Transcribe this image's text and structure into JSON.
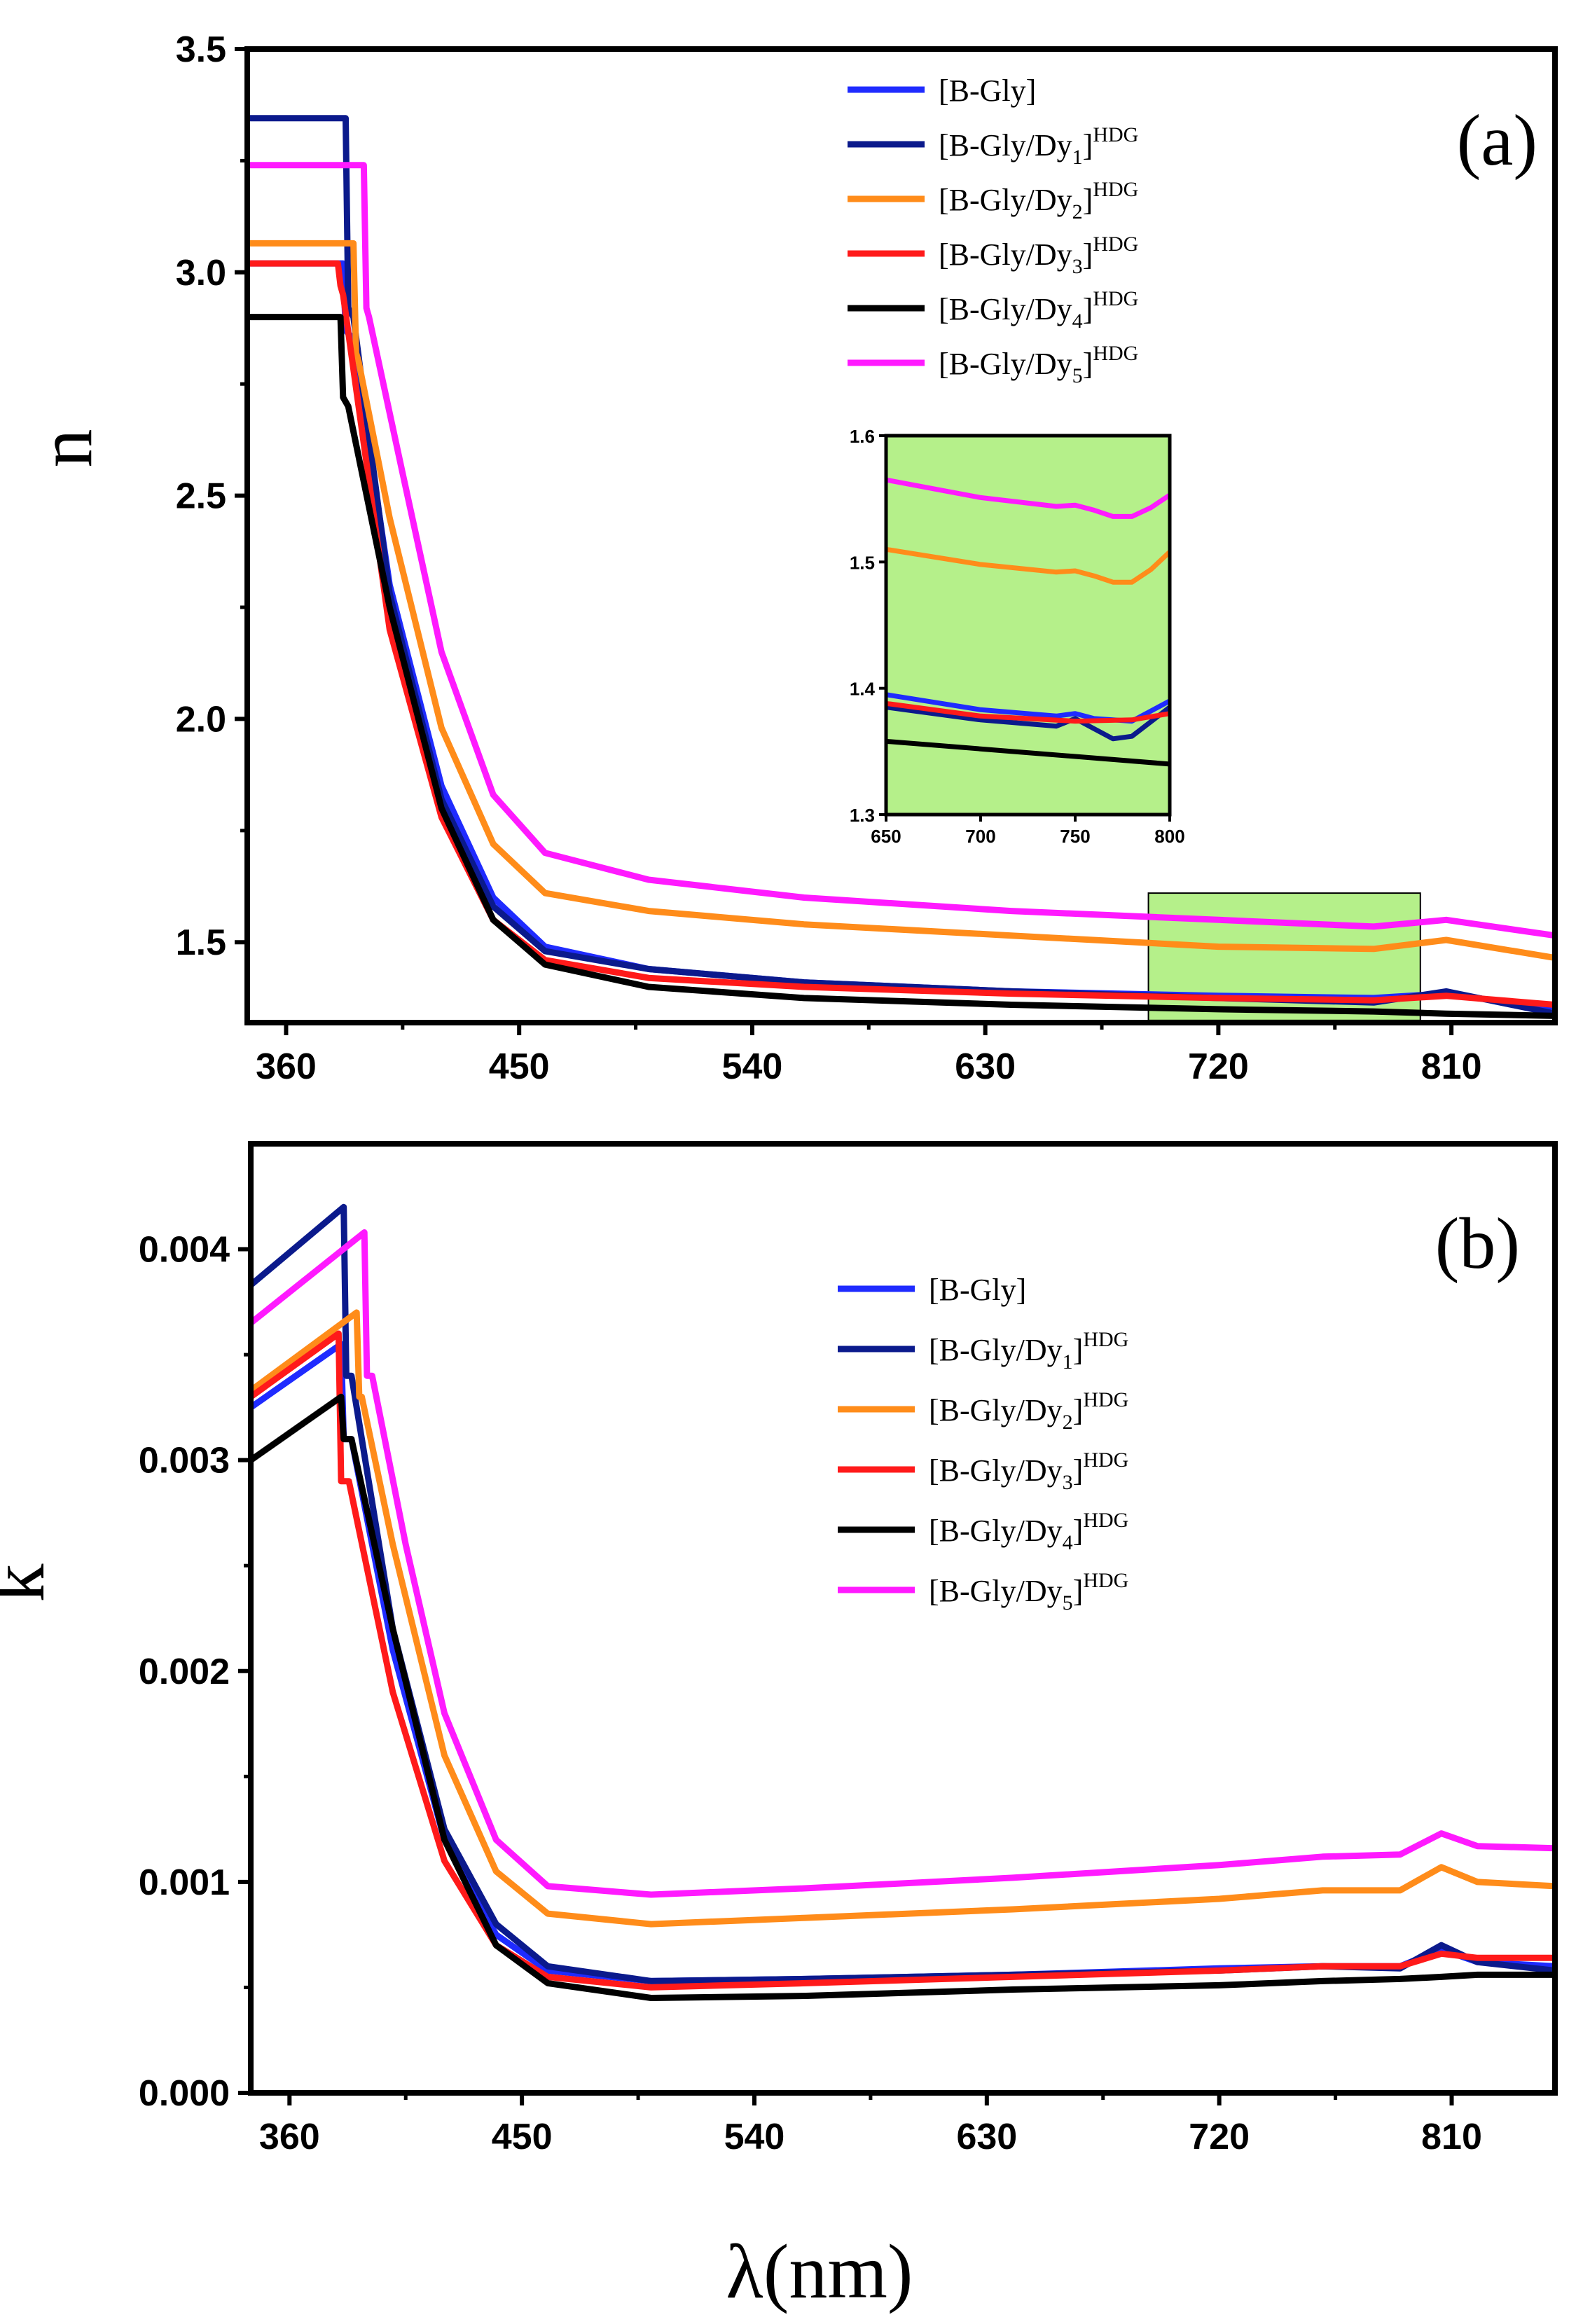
{
  "figure": {
    "xlabel": "λ(nm)",
    "x_ticks": [
      360,
      450,
      540,
      630,
      720,
      810
    ]
  },
  "chart_data": [
    {
      "type": "line",
      "panel": "(a)",
      "ylabel": "n",
      "xlim": [
        345,
        850
      ],
      "ylim": [
        1.32,
        3.5
      ],
      "y_ticks": [
        "1.5",
        "2.0",
        "2.5",
        "3.0",
        "3.5"
      ],
      "y_tick_values": [
        1.5,
        2.0,
        2.5,
        3.0,
        3.5
      ],
      "legend_position": "top-right",
      "series": [
        {
          "name": "[B-Gly]",
          "name_parts": [
            "[B-Gly]",
            "",
            "",
            ""
          ],
          "color": "#1f2bff",
          "edge": 382,
          "plateau": 3.02,
          "x": [
            386,
            400,
            420,
            440,
            460,
            500,
            560,
            640,
            720,
            780,
            808,
            850
          ],
          "y": [
            2.85,
            2.3,
            1.85,
            1.6,
            1.49,
            1.44,
            1.41,
            1.39,
            1.38,
            1.375,
            1.385,
            1.35
          ]
        },
        {
          "name": "[B-Gly/Dy1]HDG",
          "name_parts": [
            "[B-Gly/Dy",
            "1",
            "]",
            "HDG"
          ],
          "color": "#0b1a8c",
          "edge": 383,
          "plateau": 3.345,
          "x": [
            386,
            400,
            420,
            440,
            460,
            500,
            560,
            640,
            720,
            780,
            808,
            850
          ],
          "y": [
            2.9,
            2.28,
            1.82,
            1.58,
            1.48,
            1.44,
            1.41,
            1.39,
            1.375,
            1.365,
            1.39,
            1.34
          ]
        },
        {
          "name": "[B-Gly/Dy2]HDG",
          "name_parts": [
            "[B-Gly/Dy",
            "2",
            "]",
            "HDG"
          ],
          "color": "#ff8c1a",
          "edge": 386,
          "plateau": 3.065,
          "x": [
            388,
            400,
            420,
            440,
            460,
            500,
            560,
            640,
            720,
            780,
            808,
            850
          ],
          "y": [
            2.8,
            2.45,
            1.98,
            1.72,
            1.61,
            1.57,
            1.54,
            1.515,
            1.49,
            1.485,
            1.505,
            1.465
          ]
        },
        {
          "name": "[B-Gly/Dy3]HDG",
          "name_parts": [
            "[B-Gly/Dy",
            "3",
            "]",
            "HDG"
          ],
          "color": "#ff1a1a",
          "edge": 380,
          "plateau": 3.02,
          "x": [
            382,
            400,
            420,
            440,
            460,
            500,
            560,
            640,
            720,
            780,
            808,
            850
          ],
          "y": [
            2.95,
            2.2,
            1.78,
            1.55,
            1.46,
            1.42,
            1.4,
            1.385,
            1.375,
            1.37,
            1.38,
            1.36
          ]
        },
        {
          "name": "[B-Gly/Dy4]HDG",
          "name_parts": [
            "[B-Gly/Dy",
            "4",
            "]",
            "HDG"
          ],
          "color": "#000000",
          "edge": 381,
          "plateau": 2.9,
          "x": [
            384,
            400,
            420,
            440,
            460,
            500,
            560,
            640,
            720,
            780,
            808,
            850
          ],
          "y": [
            2.7,
            2.25,
            1.8,
            1.55,
            1.45,
            1.4,
            1.375,
            1.36,
            1.35,
            1.345,
            1.34,
            1.335
          ]
        },
        {
          "name": "[B-Gly/Dy5]HDG",
          "name_parts": [
            "[B-Gly/Dy",
            "5",
            "]",
            "HDG"
          ],
          "color": "#ff1aff",
          "edge": 390,
          "plateau": 3.24,
          "x": [
            392,
            405,
            420,
            440,
            460,
            500,
            560,
            640,
            720,
            780,
            808,
            850
          ],
          "y": [
            2.9,
            2.55,
            2.15,
            1.83,
            1.7,
            1.64,
            1.6,
            1.57,
            1.55,
            1.535,
            1.55,
            1.515
          ]
        }
      ],
      "highlight_box": {
        "x_range": [
          693,
          798
        ],
        "y_range": [
          1.325,
          1.61
        ]
      },
      "inset": {
        "xlim": [
          650,
          800
        ],
        "ylim": [
          1.3,
          1.6
        ],
        "x_ticks": [
          "650",
          "700",
          "750",
          "800"
        ],
        "x_tick_values": [
          650,
          700,
          750,
          800
        ],
        "y_ticks": [
          "1.3",
          "1.4",
          "1.5",
          "1.6"
        ],
        "y_tick_values": [
          1.3,
          1.4,
          1.5,
          1.6
        ],
        "series": [
          {
            "color": "#1f2bff",
            "x": [
              650,
              700,
              740,
              750,
              760,
              780,
              800
            ],
            "y": [
              1.395,
              1.383,
              1.378,
              1.38,
              1.376,
              1.374,
              1.39
            ]
          },
          {
            "color": "#0b1a8c",
            "x": [
              650,
              700,
              740,
              750,
              760,
              770,
              780,
              800
            ],
            "y": [
              1.385,
              1.375,
              1.37,
              1.376,
              1.368,
              1.36,
              1.362,
              1.385
            ]
          },
          {
            "color": "#ff1a1a",
            "x": [
              650,
              700,
              750,
              780,
              800
            ],
            "y": [
              1.388,
              1.378,
              1.374,
              1.375,
              1.38
            ]
          },
          {
            "color": "#000000",
            "x": [
              650,
              700,
              750,
              800
            ],
            "y": [
              1.358,
              1.352,
              1.346,
              1.34
            ]
          },
          {
            "color": "#ff8c1a",
            "x": [
              650,
              700,
              740,
              750,
              760,
              770,
              780,
              790,
              800
            ],
            "y": [
              1.51,
              1.498,
              1.492,
              1.493,
              1.489,
              1.484,
              1.484,
              1.494,
              1.508
            ]
          },
          {
            "color": "#ff1aff",
            "x": [
              650,
              700,
              740,
              750,
              760,
              770,
              780,
              790,
              800
            ],
            "y": [
              1.565,
              1.551,
              1.544,
              1.545,
              1.541,
              1.536,
              1.536,
              1.543,
              1.553
            ]
          }
        ]
      }
    },
    {
      "type": "line",
      "panel": "(b)",
      "ylabel": "k",
      "xlim": [
        345,
        850
      ],
      "ylim": [
        0,
        0.0045
      ],
      "y_ticks": [
        "0.000",
        "0.001",
        "0.002",
        "0.003",
        "0.004"
      ],
      "y_tick_values": [
        0,
        0.001,
        0.002,
        0.003,
        0.004
      ],
      "legend_position": "top-right",
      "series": [
        {
          "name": "[B-Gly]",
          "name_parts": [
            "[B-Gly]",
            "",
            "",
            ""
          ],
          "color": "#1f2bff",
          "edge": 380,
          "start": 0.00325,
          "peak": 0.00355,
          "x": [
            384,
            400,
            420,
            440,
            460,
            500,
            560,
            640,
            720,
            760,
            790,
            806,
            820,
            850
          ],
          "y": [
            0.0031,
            0.0021,
            0.0012,
            0.00075,
            0.00058,
            0.00053,
            0.00054,
            0.00056,
            0.00059,
            0.0006,
            0.0006,
            0.00068,
            0.00062,
            0.0006
          ]
        },
        {
          "name": "[B-Gly/Dy1]HDG",
          "name_parts": [
            "[B-Gly/Dy",
            "1",
            "]",
            "HDG"
          ],
          "color": "#0b1a8c",
          "edge": 381,
          "start": 0.00383,
          "peak": 0.0042,
          "x": [
            384,
            400,
            420,
            440,
            460,
            500,
            560,
            640,
            720,
            760,
            790,
            806,
            820,
            850
          ],
          "y": [
            0.0034,
            0.0022,
            0.00125,
            0.0008,
            0.0006,
            0.00053,
            0.00054,
            0.00056,
            0.00058,
            0.0006,
            0.00059,
            0.0007,
            0.00062,
            0.00058
          ]
        },
        {
          "name": "[B-Gly/Dy2]HDG",
          "name_parts": [
            "[B-Gly/Dy",
            "2",
            "]",
            "HDG"
          ],
          "color": "#ff8c1a",
          "edge": 386,
          "start": 0.00333,
          "peak": 0.0037,
          "x": [
            388,
            400,
            420,
            440,
            460,
            500,
            560,
            640,
            720,
            760,
            790,
            806,
            820,
            850
          ],
          "y": [
            0.0033,
            0.0026,
            0.0016,
            0.00105,
            0.00085,
            0.0008,
            0.00083,
            0.00087,
            0.00092,
            0.00096,
            0.00096,
            0.00107,
            0.001,
            0.00098
          ]
        },
        {
          "name": "[B-Gly/Dy3]HDG",
          "name_parts": [
            "[B-Gly/Dy",
            "3",
            "]",
            "HDG"
          ],
          "color": "#ff1a1a",
          "edge": 379,
          "start": 0.0033,
          "peak": 0.0036,
          "x": [
            383,
            400,
            420,
            440,
            460,
            500,
            560,
            640,
            720,
            760,
            790,
            806,
            820,
            850
          ],
          "y": [
            0.0029,
            0.0019,
            0.0011,
            0.0007,
            0.00055,
            0.0005,
            0.00052,
            0.00055,
            0.00058,
            0.0006,
            0.0006,
            0.00066,
            0.00064,
            0.00064
          ]
        },
        {
          "name": "[B-Gly/Dy4]HDG",
          "name_parts": [
            "[B-Gly/Dy",
            "4",
            "]",
            "HDG"
          ],
          "color": "#000000",
          "edge": 380,
          "start": 0.003,
          "peak": 0.0033,
          "x": [
            384,
            400,
            420,
            440,
            460,
            500,
            560,
            640,
            720,
            760,
            790,
            806,
            820,
            850
          ],
          "y": [
            0.0031,
            0.0022,
            0.0012,
            0.0007,
            0.00052,
            0.00045,
            0.00046,
            0.00049,
            0.00051,
            0.00053,
            0.00054,
            0.00055,
            0.00056,
            0.00056
          ]
        },
        {
          "name": "[B-Gly/Dy5]HDG",
          "name_parts": [
            "[B-Gly/Dy",
            "5",
            "]",
            "HDG"
          ],
          "color": "#ff1aff",
          "edge": 389,
          "start": 0.00365,
          "peak": 0.00408,
          "x": [
            392,
            405,
            420,
            440,
            460,
            500,
            560,
            640,
            720,
            760,
            790,
            806,
            820,
            850
          ],
          "y": [
            0.0034,
            0.0026,
            0.0018,
            0.0012,
            0.00098,
            0.00094,
            0.00097,
            0.00102,
            0.00108,
            0.00112,
            0.00113,
            0.00123,
            0.00117,
            0.00116
          ]
        }
      ]
    }
  ]
}
